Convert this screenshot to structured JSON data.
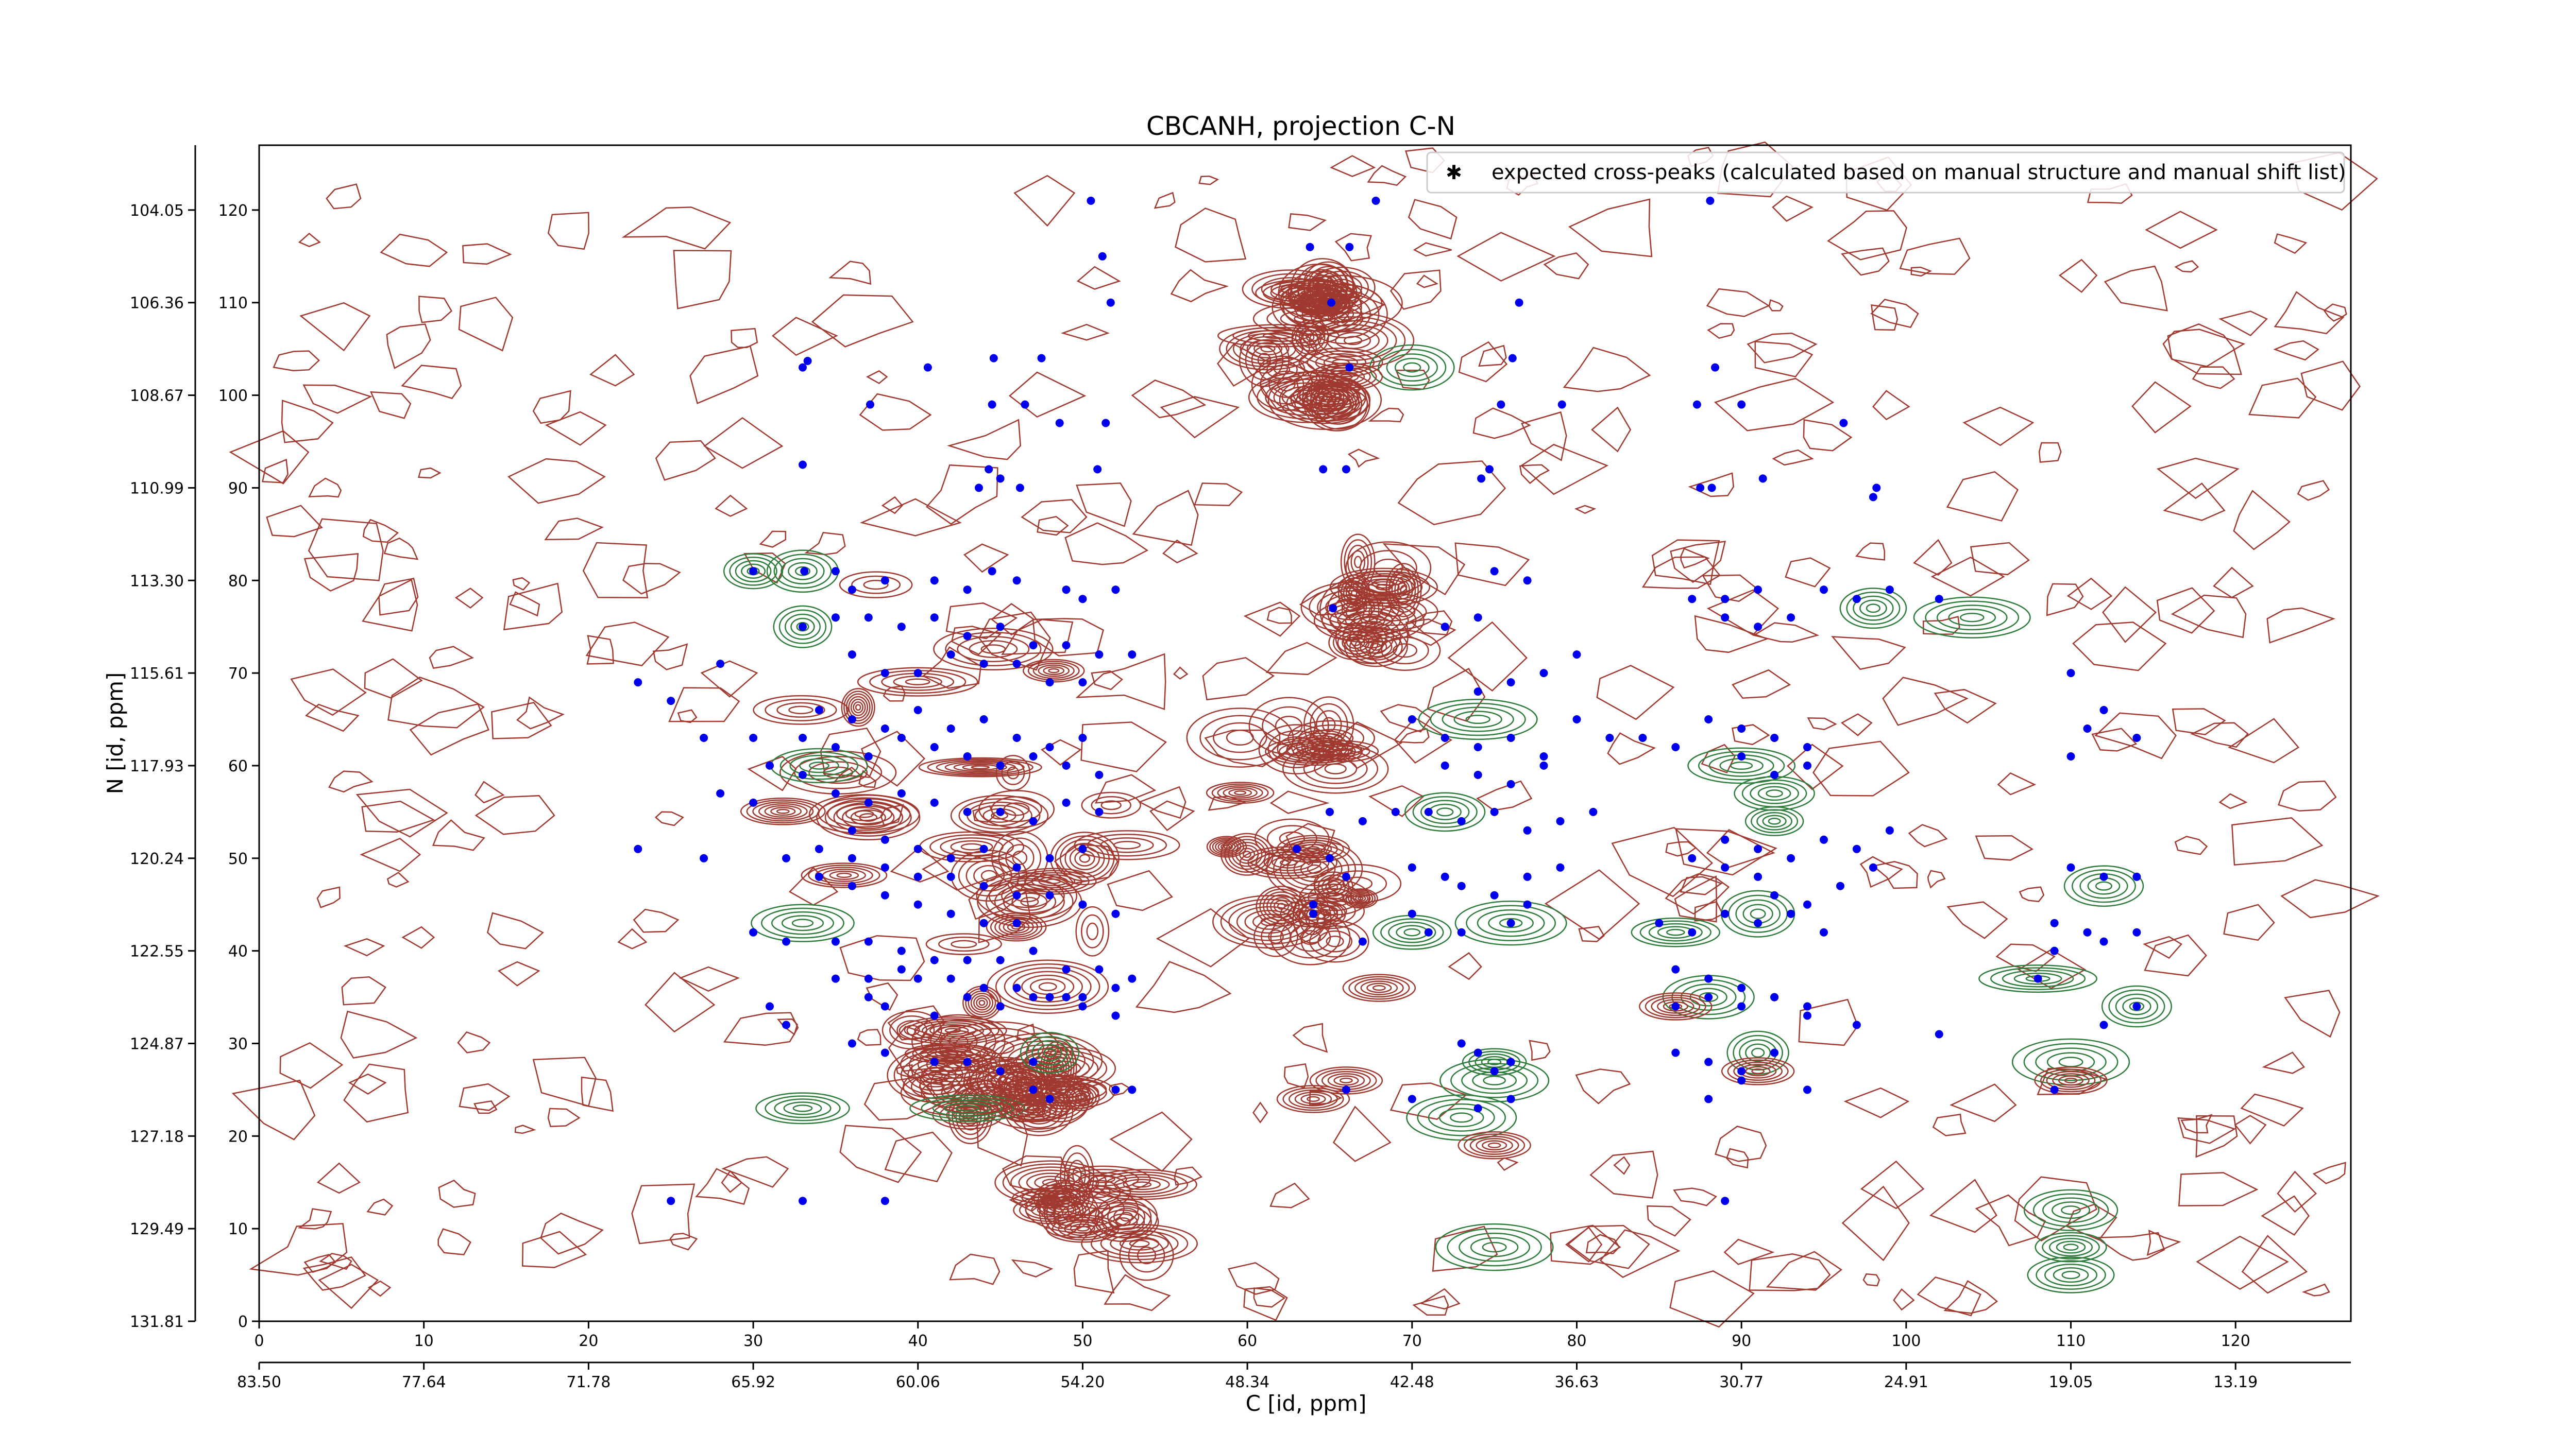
{
  "chart_data": {
    "type": "scatter",
    "title": "CBCANH, projection C-N",
    "xlabel": "C [id, ppm]",
    "ylabel": "N [id, ppm]",
    "xlim": [
      0,
      127
    ],
    "ylim": [
      0,
      127
    ],
    "x_index_ticks": [
      "0",
      "10",
      "20",
      "30",
      "40",
      "50",
      "60",
      "70",
      "80",
      "90",
      "100",
      "110",
      "120"
    ],
    "x_ppm_ticks": [
      "83.50",
      "77.64",
      "71.78",
      "65.92",
      "60.06",
      "54.20",
      "48.34",
      "42.48",
      "36.63",
      "30.77",
      "24.91",
      "19.05",
      "13.19"
    ],
    "y_index_ticks": [
      "0",
      "10",
      "20",
      "30",
      "40",
      "50",
      "60",
      "70",
      "80",
      "90",
      "100",
      "110",
      "120"
    ],
    "y_ppm_ticks": [
      "131.81",
      "129.49",
      "127.18",
      "124.87",
      "122.55",
      "120.24",
      "117.93",
      "115.61",
      "113.30",
      "110.99",
      "108.67",
      "106.36",
      "104.05"
    ],
    "legend": {
      "position": "top-right",
      "label": "expected cross-peaks (calculated based on manual structure and manual shift list)",
      "marker_color": "#0000ee"
    },
    "contour_colors": {
      "positive": "#a0392f",
      "negative": "#2e7d3c"
    },
    "grid": false,
    "series": [
      {
        "name": "expected cross-peaks (calculated based on manual structure and manual shift list)",
        "color": "#0000ee",
        "points": [
          [
            50.5,
            121
          ],
          [
            67.8,
            121
          ],
          [
            88.1,
            121
          ],
          [
            63.8,
            116
          ],
          [
            66.2,
            116
          ],
          [
            51.2,
            115
          ],
          [
            51.7,
            110
          ],
          [
            65.1,
            110
          ],
          [
            76.5,
            110
          ],
          [
            33.3,
            103.7
          ],
          [
            33,
            103
          ],
          [
            40.6,
            103
          ],
          [
            44.6,
            104
          ],
          [
            47.5,
            104
          ],
          [
            66.2,
            103
          ],
          [
            76.1,
            104
          ],
          [
            88.4,
            103
          ],
          [
            37.1,
            99
          ],
          [
            44.5,
            99
          ],
          [
            46.5,
            99
          ],
          [
            48.6,
            97
          ],
          [
            51.4,
            97
          ],
          [
            87.3,
            99
          ],
          [
            75.4,
            99
          ],
          [
            79.1,
            99
          ],
          [
            90,
            99
          ],
          [
            96.2,
            97
          ],
          [
            33,
            92.5
          ],
          [
            44.3,
            92
          ],
          [
            45,
            91
          ],
          [
            43.7,
            90
          ],
          [
            46.2,
            90
          ],
          [
            50.9,
            92
          ],
          [
            64.6,
            92
          ],
          [
            66,
            92
          ],
          [
            74.2,
            91
          ],
          [
            74.7,
            92
          ],
          [
            87.5,
            90
          ],
          [
            88.2,
            90
          ],
          [
            91.3,
            91
          ],
          [
            98,
            89
          ],
          [
            98.2,
            90
          ],
          [
            30,
            81
          ],
          [
            33.1,
            81
          ],
          [
            35,
            81
          ],
          [
            44.5,
            81
          ],
          [
            65.2,
            77
          ],
          [
            36,
            79
          ],
          [
            38,
            80
          ],
          [
            41,
            80
          ],
          [
            43,
            79
          ],
          [
            46,
            80
          ],
          [
            49,
            79
          ],
          [
            50,
            78
          ],
          [
            52,
            79
          ],
          [
            33,
            75
          ],
          [
            35,
            76
          ],
          [
            37,
            76
          ],
          [
            39,
            75
          ],
          [
            41,
            76
          ],
          [
            43,
            74
          ],
          [
            45,
            75
          ],
          [
            47,
            73
          ],
          [
            49,
            73
          ],
          [
            51,
            72
          ],
          [
            53,
            72
          ],
          [
            36,
            72
          ],
          [
            38,
            70
          ],
          [
            40,
            70
          ],
          [
            42,
            72
          ],
          [
            44,
            71
          ],
          [
            46,
            71
          ],
          [
            48,
            69
          ],
          [
            50,
            69
          ],
          [
            72,
            75
          ],
          [
            74,
            76
          ],
          [
            75,
            81
          ],
          [
            77,
            80
          ],
          [
            78,
            70
          ],
          [
            80,
            72
          ],
          [
            76,
            69
          ],
          [
            74,
            68
          ],
          [
            87,
            78
          ],
          [
            89,
            78
          ],
          [
            91,
            79
          ],
          [
            93,
            76
          ],
          [
            95,
            79
          ],
          [
            97,
            78
          ],
          [
            99,
            79
          ],
          [
            102,
            78
          ],
          [
            89,
            76
          ],
          [
            91,
            75
          ],
          [
            23,
            69
          ],
          [
            25,
            67
          ],
          [
            28,
            71
          ],
          [
            34,
            66
          ],
          [
            36,
            65
          ],
          [
            38,
            64
          ],
          [
            40,
            66
          ],
          [
            42,
            64
          ],
          [
            44,
            65
          ],
          [
            46,
            63
          ],
          [
            48,
            62
          ],
          [
            50,
            63
          ],
          [
            30,
            63
          ],
          [
            33,
            63
          ],
          [
            35,
            62
          ],
          [
            37,
            61
          ],
          [
            39,
            63
          ],
          [
            41,
            62
          ],
          [
            43,
            61
          ],
          [
            45,
            60
          ],
          [
            47,
            61
          ],
          [
            49,
            60
          ],
          [
            51,
            59
          ],
          [
            27,
            63
          ],
          [
            70,
            65
          ],
          [
            72,
            63
          ],
          [
            74,
            62
          ],
          [
            76,
            63
          ],
          [
            78,
            61
          ],
          [
            80,
            65
          ],
          [
            82,
            63
          ],
          [
            84,
            63
          ],
          [
            86,
            62
          ],
          [
            88,
            65
          ],
          [
            90,
            64
          ],
          [
            92,
            63
          ],
          [
            94,
            62
          ],
          [
            72,
            60
          ],
          [
            74,
            59
          ],
          [
            76,
            58
          ],
          [
            78,
            60
          ],
          [
            90,
            61
          ],
          [
            92,
            59
          ],
          [
            94,
            60
          ],
          [
            110,
            61
          ],
          [
            111,
            64
          ],
          [
            112,
            66
          ],
          [
            110,
            70
          ],
          [
            114,
            63
          ],
          [
            31,
            60
          ],
          [
            33,
            59
          ],
          [
            35,
            57
          ],
          [
            37,
            56
          ],
          [
            39,
            57
          ],
          [
            41,
            56
          ],
          [
            43,
            55
          ],
          [
            45,
            55
          ],
          [
            47,
            54
          ],
          [
            49,
            56
          ],
          [
            51,
            55
          ],
          [
            36,
            53
          ],
          [
            38,
            52
          ],
          [
            40,
            51
          ],
          [
            42,
            50
          ],
          [
            44,
            51
          ],
          [
            46,
            49
          ],
          [
            48,
            50
          ],
          [
            50,
            51
          ],
          [
            28,
            57
          ],
          [
            30,
            56
          ],
          [
            34,
            51
          ],
          [
            36,
            50
          ],
          [
            38,
            49
          ],
          [
            40,
            48
          ],
          [
            42,
            48
          ],
          [
            44,
            47
          ],
          [
            46,
            46
          ],
          [
            48,
            46
          ],
          [
            50,
            45
          ],
          [
            52,
            44
          ],
          [
            23,
            51
          ],
          [
            27,
            50
          ],
          [
            32,
            50
          ],
          [
            34,
            48
          ],
          [
            36,
            47
          ],
          [
            38,
            46
          ],
          [
            40,
            45
          ],
          [
            42,
            44
          ],
          [
            44,
            43
          ],
          [
            46,
            43
          ],
          [
            65,
            55
          ],
          [
            67,
            54
          ],
          [
            69,
            55
          ],
          [
            71,
            55
          ],
          [
            73,
            54
          ],
          [
            75,
            55
          ],
          [
            77,
            53
          ],
          [
            79,
            54
          ],
          [
            81,
            55
          ],
          [
            63,
            51
          ],
          [
            65,
            50
          ],
          [
            66,
            48
          ],
          [
            70,
            49
          ],
          [
            72,
            48
          ],
          [
            73,
            47
          ],
          [
            75,
            46
          ],
          [
            77,
            48
          ],
          [
            79,
            49
          ],
          [
            89,
            52
          ],
          [
            91,
            51
          ],
          [
            93,
            50
          ],
          [
            95,
            52
          ],
          [
            97,
            51
          ],
          [
            99,
            53
          ],
          [
            87,
            50
          ],
          [
            89,
            49
          ],
          [
            91,
            48
          ],
          [
            92,
            46
          ],
          [
            94,
            45
          ],
          [
            96,
            47
          ],
          [
            98,
            49
          ],
          [
            70,
            44
          ],
          [
            71,
            42
          ],
          [
            73,
            42
          ],
          [
            76,
            43
          ],
          [
            77,
            45
          ],
          [
            85,
            43
          ],
          [
            87,
            42
          ],
          [
            89,
            44
          ],
          [
            91,
            43
          ],
          [
            93,
            44
          ],
          [
            95,
            42
          ],
          [
            110,
            49
          ],
          [
            112,
            48
          ],
          [
            114,
            48
          ],
          [
            109,
            43
          ],
          [
            111,
            42
          ],
          [
            112,
            41
          ],
          [
            114,
            42
          ],
          [
            109,
            40
          ],
          [
            30,
            42
          ],
          [
            32,
            41
          ],
          [
            35,
            41
          ],
          [
            37,
            41
          ],
          [
            39,
            40
          ],
          [
            41,
            39
          ],
          [
            43,
            39
          ],
          [
            45,
            39
          ],
          [
            47,
            40
          ],
          [
            49,
            38
          ],
          [
            51,
            38
          ],
          [
            64,
            44
          ],
          [
            64,
            45
          ],
          [
            67,
            41
          ],
          [
            39,
            38
          ],
          [
            40,
            37
          ],
          [
            42,
            37
          ],
          [
            44,
            36
          ],
          [
            46,
            36
          ],
          [
            48,
            35
          ],
          [
            50,
            35
          ],
          [
            52,
            36
          ],
          [
            37,
            37
          ],
          [
            35,
            37
          ],
          [
            53,
            37
          ],
          [
            86,
            38
          ],
          [
            88,
            37
          ],
          [
            90,
            36
          ],
          [
            92,
            35
          ],
          [
            94,
            34
          ],
          [
            31,
            34
          ],
          [
            32,
            32
          ],
          [
            37,
            35
          ],
          [
            38,
            34
          ],
          [
            41,
            33
          ],
          [
            43,
            35
          ],
          [
            45,
            34
          ],
          [
            47,
            35
          ],
          [
            49,
            35
          ],
          [
            50,
            34
          ],
          [
            52,
            33
          ],
          [
            86,
            34
          ],
          [
            88,
            35
          ],
          [
            90,
            34
          ],
          [
            92,
            35
          ],
          [
            94,
            33
          ],
          [
            97,
            32
          ],
          [
            102,
            31
          ],
          [
            108,
            37
          ],
          [
            114,
            34
          ],
          [
            112,
            32
          ],
          [
            36,
            30
          ],
          [
            38,
            29
          ],
          [
            41,
            28
          ],
          [
            43,
            28
          ],
          [
            45,
            27
          ],
          [
            47,
            28
          ],
          [
            73,
            30
          ],
          [
            74,
            29
          ],
          [
            75,
            27
          ],
          [
            76,
            28
          ],
          [
            86,
            29
          ],
          [
            88,
            28
          ],
          [
            90,
            27
          ],
          [
            92,
            29
          ],
          [
            47,
            25
          ],
          [
            48,
            24
          ],
          [
            52,
            25
          ],
          [
            53,
            25
          ],
          [
            66,
            25
          ],
          [
            70,
            24
          ],
          [
            74,
            23
          ],
          [
            76,
            24
          ],
          [
            90,
            26
          ],
          [
            88,
            24
          ],
          [
            94,
            25
          ],
          [
            109,
            25
          ],
          [
            25,
            13
          ],
          [
            33,
            13
          ],
          [
            38,
            13
          ],
          [
            89,
            13
          ]
        ]
      }
    ]
  }
}
